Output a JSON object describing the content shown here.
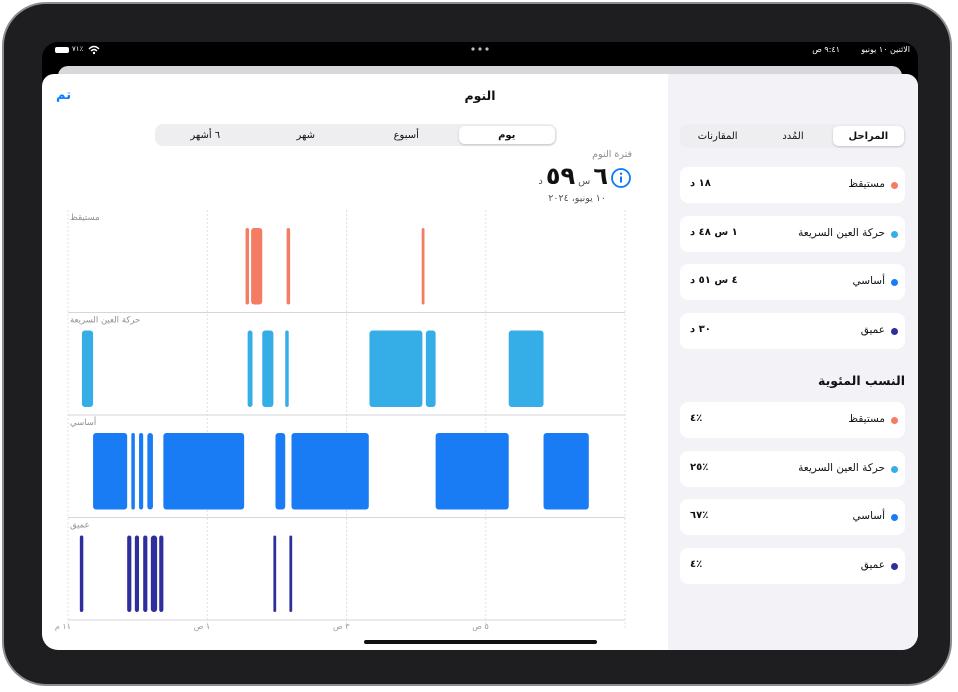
{
  "status": {
    "clock": "٩:٤١ ص",
    "date": "الاثنين ١٠ يونيو",
    "battery": "٪٧١"
  },
  "header": {
    "title": "النوم",
    "done": "تم"
  },
  "range_tabs": {
    "items": [
      "يوم",
      "أسبوع",
      "شهر",
      "٦ أشهر"
    ],
    "selected": 0
  },
  "summary": {
    "label": "فترة النوم",
    "hours": "٦",
    "hours_unit": "س",
    "minutes": "٥٩",
    "minutes_unit": "د",
    "date": "١٠ يونيو، ٢٠٢٤"
  },
  "chart_data": {
    "type": "sleep-stages",
    "xlim": [
      0,
      8
    ],
    "xticks": [
      {
        "value": 0,
        "label": "١١ م"
      },
      {
        "value": 2,
        "label": "١ ص"
      },
      {
        "value": 4,
        "label": "٣ ص"
      },
      {
        "value": 6,
        "label": "٥ ص"
      }
    ],
    "grid": true,
    "series": [
      {
        "name": "مستيقظ",
        "color": "#f47c63",
        "intervals": [
          [
            2.55,
            2.6
          ],
          [
            2.63,
            2.79
          ],
          [
            3.14,
            3.19
          ],
          [
            5.08,
            5.12
          ]
        ]
      },
      {
        "name": "حركة العين السريعة",
        "color": "#35aee8",
        "intervals": [
          [
            0.2,
            0.36
          ],
          [
            2.58,
            2.65
          ],
          [
            2.79,
            2.95
          ],
          [
            3.12,
            3.17
          ],
          [
            4.33,
            5.09
          ],
          [
            5.14,
            5.28
          ],
          [
            6.33,
            6.83
          ]
        ]
      },
      {
        "name": "أساسي",
        "color": "#1a7cf5",
        "intervals": [
          [
            0.36,
            0.85
          ],
          [
            0.91,
            0.96
          ],
          [
            1.02,
            1.08
          ],
          [
            1.14,
            1.22
          ],
          [
            1.37,
            2.53
          ],
          [
            2.98,
            3.12
          ],
          [
            3.21,
            4.32
          ],
          [
            5.28,
            6.33
          ],
          [
            6.83,
            7.48
          ]
        ]
      },
      {
        "name": "عميق",
        "color": "#2e2e9c",
        "intervals": [
          [
            0.17,
            0.22
          ],
          [
            0.85,
            0.91
          ],
          [
            0.96,
            1.02
          ],
          [
            1.08,
            1.14
          ],
          [
            1.19,
            1.28
          ],
          [
            1.31,
            1.37
          ],
          [
            2.95,
            2.99
          ],
          [
            3.18,
            3.22
          ]
        ]
      }
    ]
  },
  "sidebar": {
    "tabs": [
      "المراحل",
      "المُدد",
      "المقارنات"
    ],
    "selected_tab": 0,
    "durations": [
      "١٨ د",
      "١ س ٤٨ د",
      "٤ س ٥١ د",
      "٣٠ د"
    ],
    "percent_title": "النسب المئوية",
    "percentages": [
      "٪٤",
      "٪٢٥",
      "٪٦٧",
      "٪٤"
    ]
  }
}
